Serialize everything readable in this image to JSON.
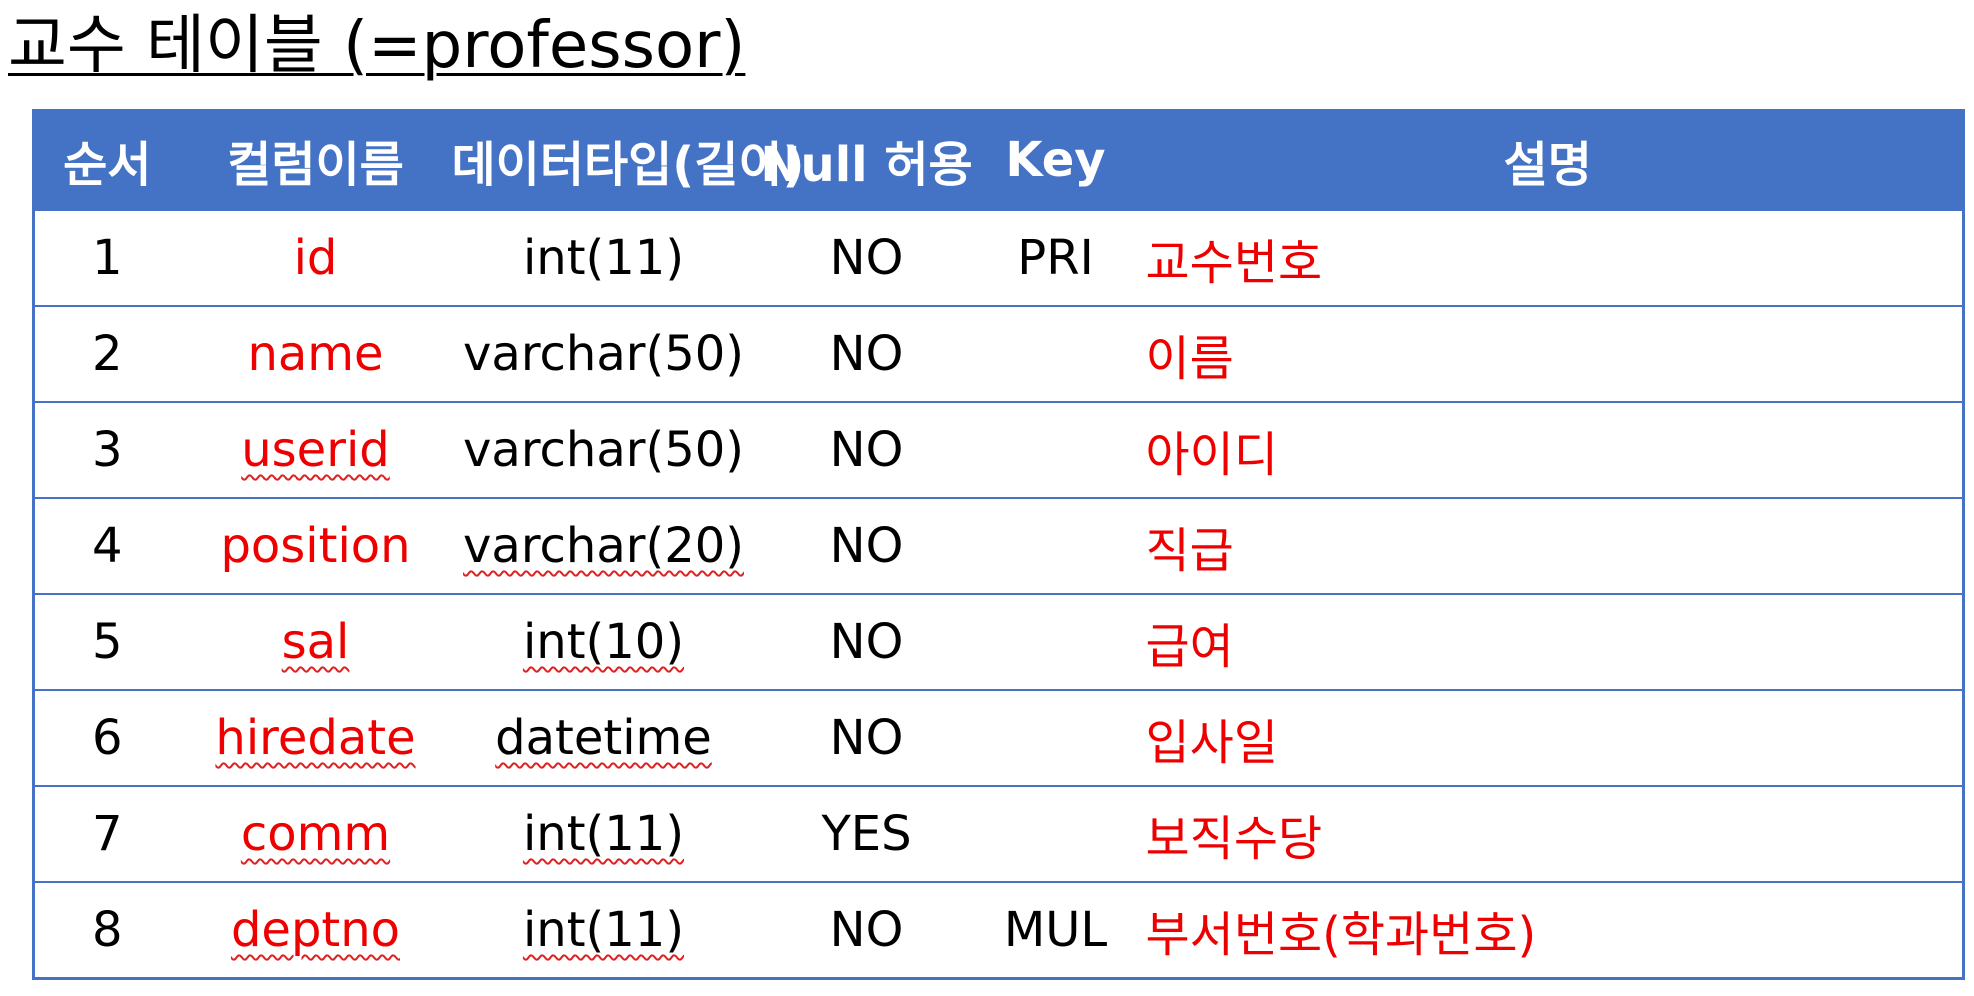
{
  "title": "교수 테이블 (=professor)",
  "colors": {
    "header_bg": "#4472c4",
    "header_text": "#ffffff",
    "accent_text": "#ee0000",
    "spellcheck": "#dd2222"
  },
  "table": {
    "headers": [
      "순서",
      "컬럼이름",
      "데이터타입(길이)",
      "Null 허용",
      "Key",
      "설명"
    ],
    "rows": [
      {
        "order": "1",
        "name": "id",
        "type": "int(11)",
        "nullable": "NO",
        "key": "PRI",
        "desc": "교수번호"
      },
      {
        "order": "2",
        "name": "name",
        "type": "varchar(50)",
        "nullable": "NO",
        "key": "",
        "desc": "이름"
      },
      {
        "order": "3",
        "name": "userid",
        "type": "varchar(50)",
        "nullable": "NO",
        "key": "",
        "desc": "아이디"
      },
      {
        "order": "4",
        "name": "position",
        "type": "varchar(20)",
        "nullable": "NO",
        "key": "",
        "desc": "직급"
      },
      {
        "order": "5",
        "name": "sal",
        "type": "int(10)",
        "nullable": "NO",
        "key": "",
        "desc": "급여"
      },
      {
        "order": "6",
        "name": "hiredate",
        "type": "datetime",
        "nullable": "NO",
        "key": "",
        "desc": "입사일"
      },
      {
        "order": "7",
        "name": "comm",
        "type": "int(11)",
        "nullable": "YES",
        "key": "",
        "desc": "보직수당"
      },
      {
        "order": "8",
        "name": "deptno",
        "type": "int(11)",
        "nullable": "NO",
        "key": "MUL",
        "desc": "부서번호(학과번호)"
      }
    ]
  }
}
